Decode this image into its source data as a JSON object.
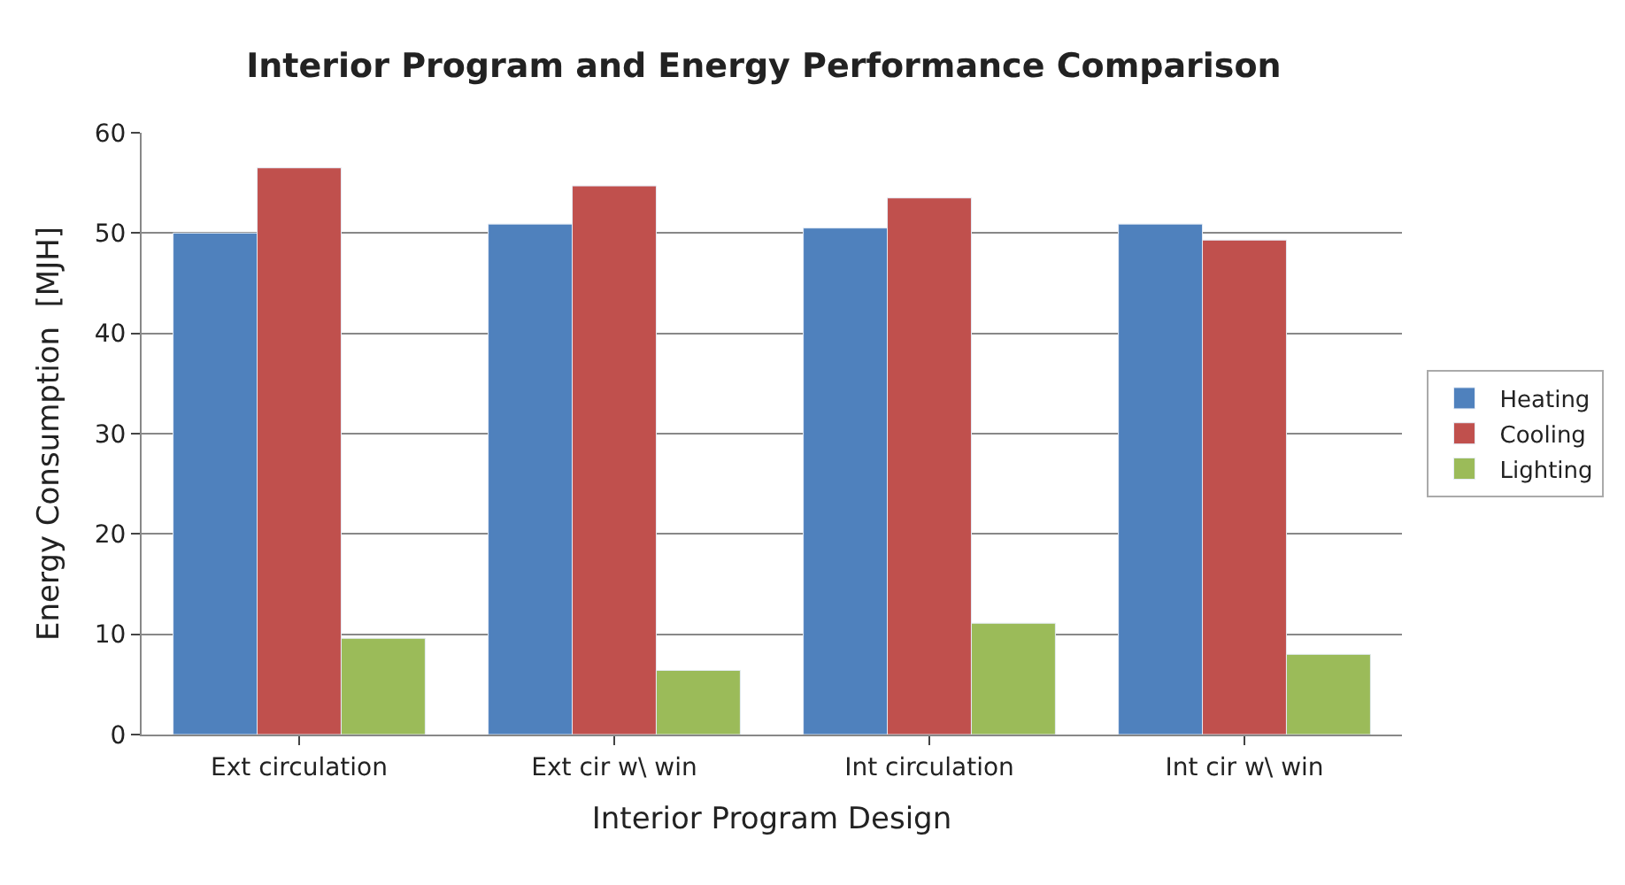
{
  "chart_data": {
    "type": "bar",
    "title": "Interior Program and Energy Performance Comparison",
    "xlabel": "Interior Program Design",
    "ylabel": "Energy Consumption  [MJH]",
    "categories": [
      "Ext circulation",
      "Ext cir w\\ win",
      "Int circulation",
      "Int cir w\\ win"
    ],
    "series": [
      {
        "name": "Heating",
        "color": "#4f81bd",
        "values": [
          50.0,
          50.9,
          50.5,
          50.9
        ]
      },
      {
        "name": "Cooling",
        "color": "#c0504d",
        "values": [
          56.5,
          54.7,
          53.5,
          49.3
        ]
      },
      {
        "name": "Lighting",
        "color": "#9bbb59",
        "values": [
          9.6,
          6.4,
          11.1,
          8.0
        ]
      }
    ],
    "ylim": [
      0,
      60
    ],
    "yticks": [
      0,
      10,
      20,
      30,
      40,
      50,
      60
    ],
    "grid": "y",
    "legend": "right"
  }
}
